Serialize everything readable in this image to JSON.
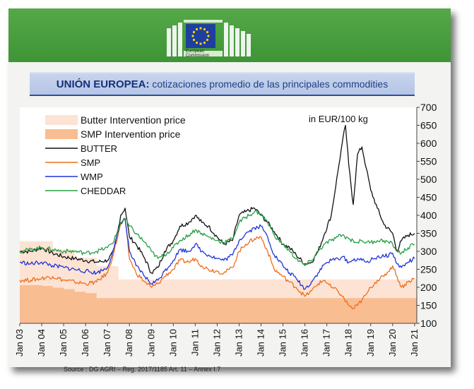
{
  "header": {
    "logo_line1": "European",
    "logo_line2": "Commission",
    "brand_color": "#3f9436"
  },
  "title": {
    "main": "UNIÓN EUROPEA",
    "separator": ":",
    "rest": " cotizaciones promedio de las principales commodities"
  },
  "source": "Source : DG AGRI – Reg. 2017/1185 Art. 11 – Annex I.7",
  "chart_data": {
    "type": "line",
    "unit_label": "in EUR/100 kg",
    "ylim": [
      100,
      700
    ],
    "yticks": [
      100,
      150,
      200,
      250,
      300,
      350,
      400,
      450,
      500,
      550,
      600,
      650,
      700
    ],
    "y_axis_side": "right",
    "xlim": [
      2003,
      2021.1
    ],
    "xticks": [
      {
        "v": 2003,
        "label": "Jan 03"
      },
      {
        "v": 2004,
        "label": "Jan 04"
      },
      {
        "v": 2005,
        "label": "Jan 05"
      },
      {
        "v": 2006,
        "label": "Jan 06"
      },
      {
        "v": 2007,
        "label": "Jan 07"
      },
      {
        "v": 2008,
        "label": "Jan 08"
      },
      {
        "v": 2009,
        "label": "Jan 09"
      },
      {
        "v": 2010,
        "label": "Jan 10"
      },
      {
        "v": 2011,
        "label": "Jan 11"
      },
      {
        "v": 2012,
        "label": "Jan 12"
      },
      {
        "v": 2013,
        "label": "Jan 13"
      },
      {
        "v": 2014,
        "label": "Jan 14"
      },
      {
        "v": 2015,
        "label": "Jan 15"
      },
      {
        "v": 2016,
        "label": "Jan 16"
      },
      {
        "v": 2017,
        "label": "Jan 17"
      },
      {
        "v": 2018,
        "label": "Jan 18"
      },
      {
        "v": 2019,
        "label": "Jan 19"
      },
      {
        "v": 2020,
        "label": "Jan 20"
      },
      {
        "v": 2021,
        "label": "Jan 21"
      }
    ],
    "grid": false,
    "legend_position": "top-left",
    "areas": [
      {
        "name": "Butter Intervention price",
        "color": "#fde3d4",
        "x": [
          2003,
          2004.5,
          2004.5,
          2005.5,
          2005.5,
          2006.5,
          2006.5,
          2007.5,
          2007.5,
          2021.1
        ],
        "y": [
          328,
          328,
          305,
          305,
          282,
          282,
          259,
          259,
          222,
          222
        ]
      },
      {
        "name": "SMP Intervention price",
        "color": "#f8bd91",
        "x": [
          2003,
          2004.0,
          2004.0,
          2004.5,
          2004.5,
          2005.0,
          2005.0,
          2005.5,
          2005.5,
          2006.0,
          2006.0,
          2006.5,
          2006.5,
          2021.1
        ],
        "y": [
          206,
          206,
          204,
          204,
          199,
          199,
          195,
          195,
          188,
          188,
          184,
          184,
          170,
          170
        ]
      }
    ],
    "series": [
      {
        "name": "BUTTER",
        "color": "#111111",
        "x": [
          2003,
          2003.5,
          2004,
          2004.5,
          2005,
          2005.5,
          2006,
          2006.5,
          2007,
          2007.3,
          2007.6,
          2007.8,
          2008,
          2008.3,
          2008.7,
          2009,
          2009.3,
          2009.6,
          2010,
          2010.3,
          2010.7,
          2011,
          2011.3,
          2011.6,
          2012,
          2012.3,
          2012.7,
          2013,
          2013.3,
          2013.7,
          2014,
          2014.3,
          2014.6,
          2015,
          2015.3,
          2015.6,
          2016,
          2016.3,
          2016.6,
          2016.9,
          2017.2,
          2017.5,
          2017.7,
          2017.85,
          2018,
          2018.2,
          2018.4,
          2018.6,
          2018.8,
          2019,
          2019.3,
          2019.6,
          2020,
          2020.2,
          2020.4,
          2020.7,
          2021
        ],
        "y": [
          300,
          300,
          310,
          295,
          285,
          280,
          275,
          270,
          275,
          300,
          400,
          420,
          340,
          320,
          280,
          240,
          255,
          300,
          330,
          370,
          380,
          400,
          380,
          370,
          340,
          320,
          330,
          400,
          410,
          420,
          400,
          380,
          355,
          320,
          310,
          290,
          265,
          270,
          300,
          350,
          400,
          520,
          600,
          650,
          540,
          430,
          570,
          590,
          530,
          470,
          420,
          375,
          350,
          300,
          330,
          345,
          350
        ]
      },
      {
        "name": "SMP",
        "color": "#ee6f1a",
        "x": [
          2003,
          2003.5,
          2004,
          2004.5,
          2005,
          2005.5,
          2006,
          2006.5,
          2007,
          2007.3,
          2007.6,
          2007.8,
          2008,
          2008.3,
          2008.7,
          2009,
          2009.3,
          2009.6,
          2010,
          2010.3,
          2010.7,
          2011,
          2011.3,
          2011.6,
          2012,
          2012.3,
          2012.7,
          2013,
          2013.3,
          2013.7,
          2014,
          2014.3,
          2014.6,
          2015,
          2015.3,
          2015.6,
          2016,
          2016.3,
          2016.6,
          2016.9,
          2017.2,
          2017.5,
          2017.7,
          2018,
          2018.2,
          2018.4,
          2018.6,
          2018.8,
          2019,
          2019.3,
          2019.6,
          2020,
          2020.2,
          2020.4,
          2020.7,
          2021
        ],
        "y": [
          220,
          220,
          225,
          230,
          220,
          215,
          210,
          215,
          240,
          300,
          375,
          390,
          280,
          240,
          215,
          200,
          210,
          230,
          250,
          275,
          270,
          280,
          260,
          250,
          245,
          240,
          255,
          300,
          320,
          335,
          340,
          300,
          250,
          230,
          215,
          200,
          175,
          190,
          210,
          220,
          200,
          190,
          175,
          150,
          140,
          150,
          165,
          180,
          200,
          220,
          230,
          260,
          230,
          200,
          215,
          225
        ]
      },
      {
        "name": "WMP",
        "color": "#1f34d6",
        "x": [
          2003,
          2003.5,
          2004,
          2004.5,
          2005,
          2005.5,
          2006,
          2006.5,
          2007,
          2007.3,
          2007.6,
          2007.8,
          2008,
          2008.3,
          2008.7,
          2009,
          2009.3,
          2009.6,
          2010,
          2010.3,
          2010.7,
          2011,
          2011.3,
          2011.6,
          2012,
          2012.3,
          2012.7,
          2013,
          2013.3,
          2013.7,
          2014,
          2014.3,
          2014.6,
          2015,
          2015.3,
          2015.6,
          2016,
          2016.3,
          2016.6,
          2016.9,
          2017.2,
          2017.5,
          2017.7,
          2018,
          2018.2,
          2018.4,
          2018.6,
          2018.8,
          2019,
          2019.3,
          2019.6,
          2020,
          2020.2,
          2020.4,
          2020.7,
          2021
        ],
        "y": [
          270,
          265,
          270,
          260,
          255,
          250,
          245,
          240,
          255,
          310,
          380,
          390,
          300,
          260,
          230,
          210,
          220,
          245,
          275,
          305,
          300,
          320,
          300,
          290,
          280,
          275,
          290,
          330,
          350,
          365,
          370,
          340,
          290,
          260,
          240,
          225,
          195,
          215,
          240,
          265,
          275,
          280,
          285,
          270,
          275,
          280,
          275,
          270,
          275,
          285,
          285,
          295,
          265,
          255,
          270,
          280
        ]
      },
      {
        "name": "CHEDDAR",
        "color": "#27a045",
        "x": [
          2003,
          2003.5,
          2004,
          2004.5,
          2005,
          2005.5,
          2006,
          2006.5,
          2007,
          2007.3,
          2007.6,
          2007.8,
          2008,
          2008.3,
          2008.7,
          2009,
          2009.3,
          2009.6,
          2010,
          2010.3,
          2010.7,
          2011,
          2011.3,
          2011.6,
          2012,
          2012.3,
          2012.7,
          2013,
          2013.3,
          2013.7,
          2014,
          2014.3,
          2014.6,
          2015,
          2015.3,
          2015.6,
          2016,
          2016.3,
          2016.6,
          2016.9,
          2017.2,
          2017.5,
          2017.7,
          2018,
          2018.2,
          2018.4,
          2018.6,
          2018.8,
          2019,
          2019.3,
          2019.6,
          2020,
          2020.2,
          2020.4,
          2020.7,
          2021
        ],
        "y": [
          300,
          305,
          310,
          305,
          300,
          300,
          295,
          300,
          310,
          330,
          380,
          390,
          370,
          350,
          325,
          300,
          280,
          290,
          310,
          330,
          345,
          360,
          350,
          340,
          330,
          325,
          335,
          380,
          395,
          410,
          405,
          380,
          345,
          320,
          300,
          280,
          260,
          275,
          300,
          320,
          330,
          340,
          345,
          335,
          330,
          325,
          330,
          325,
          325,
          330,
          330,
          320,
          300,
          295,
          310,
          320
        ]
      }
    ]
  }
}
